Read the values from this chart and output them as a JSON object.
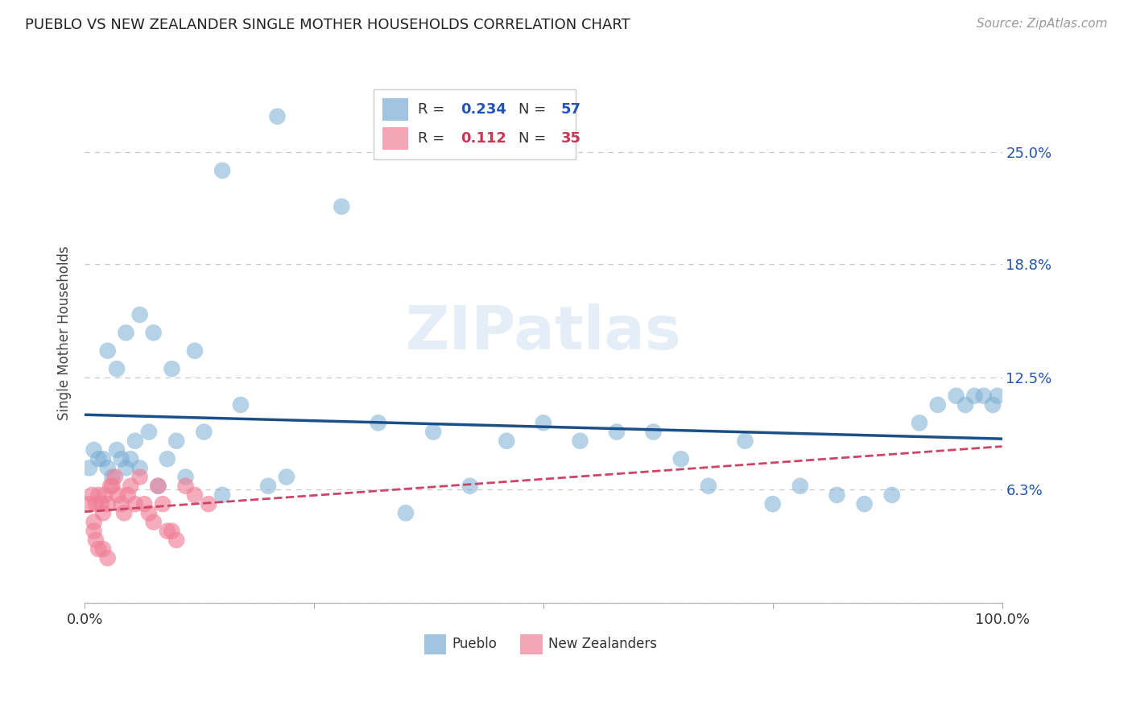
{
  "title": "PUEBLO VS NEW ZEALANDER SINGLE MOTHER HOUSEHOLDS CORRELATION CHART",
  "source": "Source: ZipAtlas.com",
  "ylabel": "Single Mother Households",
  "watermark": "ZIPatlas",
  "xlim": [
    0.0,
    1.0
  ],
  "ylim": [
    0.0,
    0.3
  ],
  "yticks": [
    0.0,
    0.063,
    0.125,
    0.188,
    0.25
  ],
  "ytick_labels": [
    "",
    "6.3%",
    "12.5%",
    "18.8%",
    "25.0%"
  ],
  "xtick_positions": [
    0.0,
    0.25,
    0.5,
    0.75,
    1.0
  ],
  "xtick_labels": [
    "0.0%",
    "",
    "",
    "",
    "100.0%"
  ],
  "background_color": "#ffffff",
  "grid_color": "#c8c8c8",
  "pueblo_color": "#7aadd4",
  "nz_color": "#f08098",
  "pueblo_line_color": "#1a4f8a",
  "nz_line_color": "#cc4466",
  "legend_R1": "0.234",
  "legend_N1": "57",
  "legend_R2": "0.112",
  "legend_N2": "35",
  "pueblo_x": [
    0.005,
    0.01,
    0.015,
    0.02,
    0.025,
    0.03,
    0.035,
    0.04,
    0.045,
    0.05,
    0.055,
    0.06,
    0.07,
    0.08,
    0.09,
    0.1,
    0.11,
    0.13,
    0.15,
    0.17,
    0.2,
    0.22,
    0.28,
    0.32,
    0.38,
    0.42,
    0.46,
    0.5,
    0.54,
    0.58,
    0.62,
    0.65,
    0.68,
    0.72,
    0.75,
    0.78,
    0.82,
    0.85,
    0.88,
    0.91,
    0.93,
    0.95,
    0.96,
    0.97,
    0.98,
    0.99,
    0.995,
    0.025,
    0.035,
    0.045,
    0.06,
    0.075,
    0.095,
    0.12,
    0.15,
    0.21,
    0.35
  ],
  "pueblo_y": [
    0.075,
    0.085,
    0.08,
    0.08,
    0.075,
    0.07,
    0.085,
    0.08,
    0.075,
    0.08,
    0.09,
    0.075,
    0.095,
    0.065,
    0.08,
    0.09,
    0.07,
    0.095,
    0.06,
    0.11,
    0.065,
    0.07,
    0.22,
    0.1,
    0.095,
    0.065,
    0.09,
    0.1,
    0.09,
    0.095,
    0.095,
    0.08,
    0.065,
    0.09,
    0.055,
    0.065,
    0.06,
    0.055,
    0.06,
    0.1,
    0.11,
    0.115,
    0.11,
    0.115,
    0.115,
    0.11,
    0.115,
    0.14,
    0.13,
    0.15,
    0.16,
    0.15,
    0.13,
    0.14,
    0.24,
    0.27,
    0.05
  ],
  "nz_x": [
    0.005,
    0.008,
    0.01,
    0.012,
    0.015,
    0.018,
    0.02,
    0.022,
    0.025,
    0.028,
    0.03,
    0.033,
    0.036,
    0.04,
    0.043,
    0.047,
    0.05,
    0.055,
    0.06,
    0.065,
    0.07,
    0.075,
    0.08,
    0.085,
    0.09,
    0.095,
    0.1,
    0.11,
    0.12,
    0.135,
    0.01,
    0.012,
    0.015,
    0.02,
    0.025
  ],
  "nz_y": [
    0.055,
    0.06,
    0.045,
    0.055,
    0.06,
    0.055,
    0.05,
    0.06,
    0.055,
    0.065,
    0.065,
    0.07,
    0.06,
    0.055,
    0.05,
    0.06,
    0.065,
    0.055,
    0.07,
    0.055,
    0.05,
    0.045,
    0.065,
    0.055,
    0.04,
    0.04,
    0.035,
    0.065,
    0.06,
    0.055,
    0.04,
    0.035,
    0.03,
    0.03,
    0.025
  ]
}
